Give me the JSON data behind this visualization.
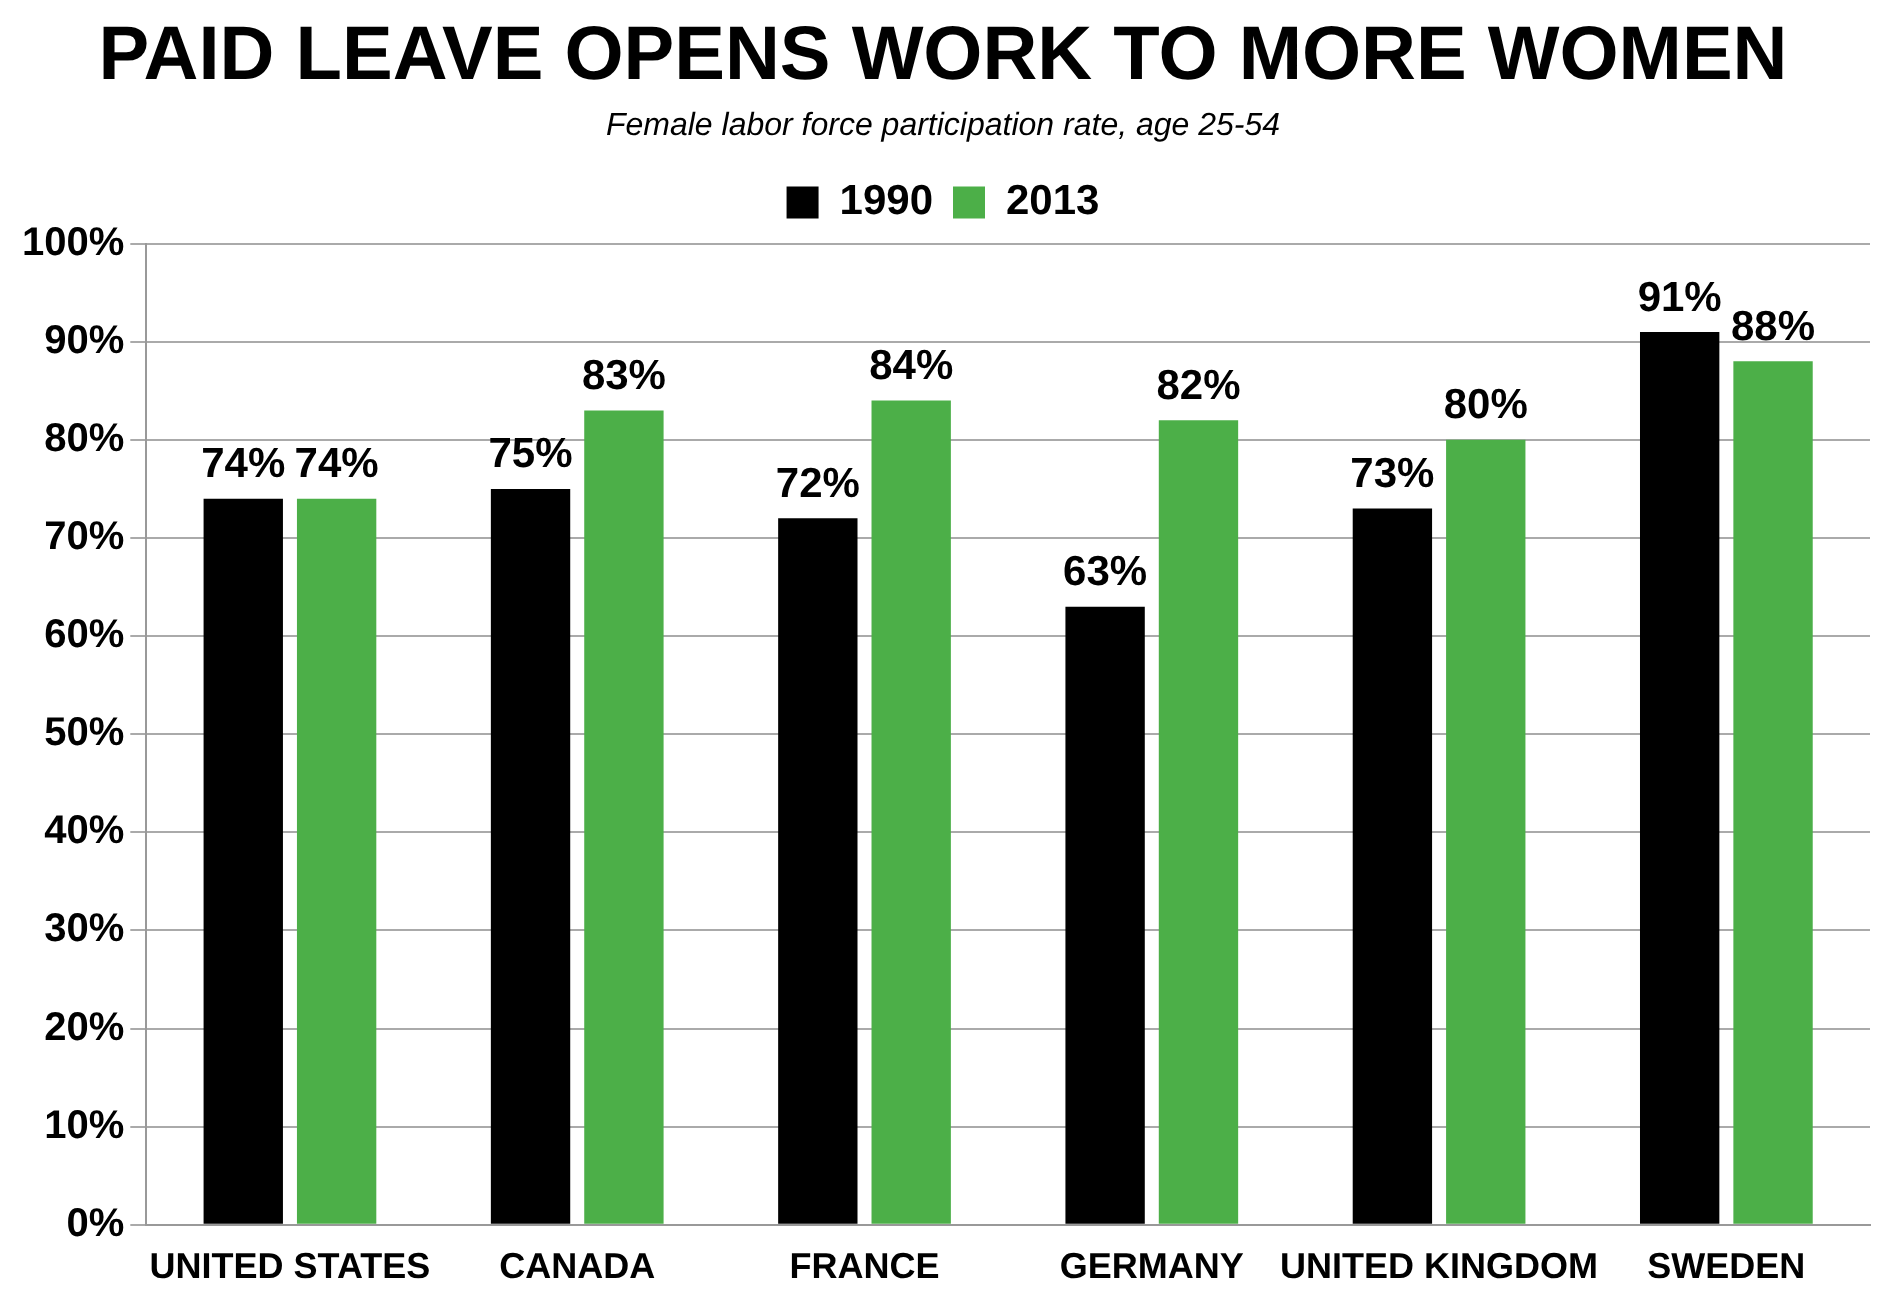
{
  "chart_data": {
    "type": "bar",
    "title": "PAID LEAVE OPENS WORK TO MORE WOMEN",
    "subtitle": "Female labor force participation rate, age 25-54",
    "categories": [
      "UNITED STATES",
      "CANADA",
      "FRANCE",
      "GERMANY",
      "UNITED KINGDOM",
      "SWEDEN"
    ],
    "series": [
      {
        "name": "1990",
        "color": "#000000",
        "values": [
          74,
          75,
          72,
          63,
          73,
          91
        ],
        "value_labels": [
          "74%",
          "75%",
          "72%",
          "63%",
          "73%",
          "91%"
        ]
      },
      {
        "name": "2013",
        "color": "#4caf48",
        "values": [
          74,
          83,
          84,
          82,
          80,
          88
        ],
        "value_labels": [
          "74%",
          "83%",
          "84%",
          "82%",
          "80%",
          "88%"
        ]
      }
    ],
    "ylim": [
      0,
      100
    ],
    "yticks": [
      {
        "value": 0,
        "label": "0%"
      },
      {
        "value": 10,
        "label": "10%"
      },
      {
        "value": 20,
        "label": "20%"
      },
      {
        "value": 30,
        "label": "30%"
      },
      {
        "value": 40,
        "label": "40%"
      },
      {
        "value": 50,
        "label": "50%"
      },
      {
        "value": 60,
        "label": "60%"
      },
      {
        "value": 70,
        "label": "70%"
      },
      {
        "value": 80,
        "label": "80%"
      },
      {
        "value": 90,
        "label": "90%"
      },
      {
        "value": 100,
        "label": "100%"
      }
    ],
    "grid": "y",
    "legend": "top"
  }
}
